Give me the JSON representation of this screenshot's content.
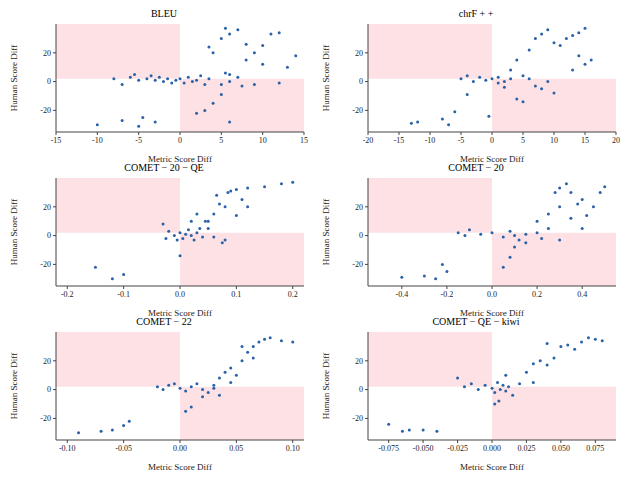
{
  "chart_data": [
    {
      "type": "scatter",
      "title": "BLEU",
      "x_label": "Metric Score Diff",
      "y_label": "Human Score Diff",
      "color": "#2a62a8",
      "grid": false,
      "marker": "circle",
      "xlim": [
        -15,
        15
      ],
      "xticks": [
        -15,
        -10,
        -5,
        0,
        5,
        10,
        15
      ],
      "ylim": [
        -35,
        40
      ],
      "yticks": [
        -20,
        0,
        20
      ],
      "shaded_regions": [
        {
          "x": [
            -15,
            0
          ],
          "y": [
            2,
            40
          ]
        },
        {
          "x": [
            0,
            15
          ],
          "y": [
            -35,
            2
          ]
        }
      ],
      "x": [
        -4,
        -3.5,
        -3,
        -2.5,
        -2,
        -1.5,
        -1,
        -0.5,
        0,
        0.5,
        1,
        1.5,
        2,
        2.5,
        3,
        3.5,
        -6,
        -5.5,
        -5,
        -7,
        -8,
        -10,
        -7,
        -5,
        -3,
        -4.5,
        5,
        5.5,
        6,
        7,
        3,
        4,
        6,
        5,
        2,
        4,
        5,
        6,
        7,
        8,
        9,
        10,
        11,
        12,
        13,
        14,
        10,
        9,
        6,
        8,
        12,
        5.5,
        3.5,
        7.5
      ],
      "values": [
        2,
        4,
        1,
        3,
        0,
        2,
        -1,
        1,
        2,
        -1,
        3,
        0,
        1,
        4,
        -2,
        2,
        3,
        5,
        1,
        -2,
        2,
        -30,
        -27,
        -31,
        -28,
        -25,
        -2,
        6,
        0,
        3,
        -20,
        -15,
        -28,
        -9,
        -22,
        20,
        30,
        33,
        36,
        15,
        20,
        25,
        33,
        34,
        10,
        18,
        12,
        -2,
        5,
        26,
        -1,
        37,
        24,
        -3
      ]
    },
    {
      "type": "scatter",
      "title": "chrF + +",
      "x_label": "Metric Score Diff",
      "y_label": "Human Score Diff",
      "color": "#2a62a8",
      "grid": false,
      "marker": "circle",
      "xlim": [
        -20,
        20
      ],
      "xticks": [
        -20,
        -15,
        -10,
        -5,
        0,
        5,
        10,
        15,
        20
      ],
      "ylim": [
        -35,
        40
      ],
      "yticks": [
        -20,
        0,
        20
      ],
      "shaded_regions": [
        {
          "x": [
            -20,
            0
          ],
          "y": [
            2,
            40
          ]
        },
        {
          "x": [
            0,
            20
          ],
          "y": [
            -35,
            2
          ]
        }
      ],
      "x": [
        -13,
        -12,
        -8,
        -7,
        -6,
        -4,
        -5,
        -4,
        -3,
        -2,
        -1,
        0,
        1,
        1,
        2,
        3,
        -0.5,
        2,
        4,
        5,
        5,
        6,
        7,
        8,
        9,
        4,
        6,
        7,
        8,
        9,
        10,
        11,
        12,
        13,
        14,
        15,
        15,
        14,
        13,
        16,
        10,
        3
      ],
      "values": [
        -29,
        -28,
        -26,
        -30,
        -21,
        -9,
        2,
        4,
        0,
        3,
        1,
        2,
        -1,
        3,
        0,
        2,
        -24,
        -4,
        -12,
        -14,
        4,
        2,
        -3,
        -5,
        0,
        15,
        22,
        30,
        33,
        36,
        27,
        25,
        30,
        32,
        34,
        37,
        12,
        18,
        8,
        15,
        -8,
        8
      ]
    },
    {
      "type": "scatter",
      "title": "COMET − 20 − QE",
      "x_label": "Metric Score Diff",
      "y_label": "Human Score Diff",
      "color": "#2a62a8",
      "grid": false,
      "marker": "circle",
      "xlim": [
        -0.22,
        0.22
      ],
      "xticks": [
        -0.2,
        -0.1,
        {
          "value": 0,
          "label": "0.0"
        },
        0.1,
        0.2
      ],
      "ylim": [
        -35,
        40
      ],
      "yticks": [
        -20,
        0,
        20
      ],
      "shaded_regions": [
        {
          "x": [
            -0.22,
            0
          ],
          "y": [
            2,
            40
          ]
        },
        {
          "x": [
            0,
            0.22
          ],
          "y": [
            -35,
            2
          ]
        }
      ],
      "x": [
        -0.15,
        -0.12,
        -0.1,
        -0.03,
        -0.02,
        -0.025,
        -0.01,
        0,
        0.005,
        0.01,
        0.015,
        0.02,
        0.025,
        0.03,
        0.035,
        0.04,
        0.045,
        0.02,
        0.03,
        0.05,
        0.06,
        0.07,
        0.08,
        0.085,
        0.09,
        0.1,
        0.11,
        0.12,
        0.15,
        0.2,
        0.18,
        0.12,
        0.08,
        0.06,
        0,
        -0.005,
        0.05,
        0.1,
        0.065,
        0.075
      ],
      "values": [
        -22,
        -30,
        -27,
        8,
        3,
        -2,
        0,
        2,
        -2,
        1,
        4,
        0,
        -3,
        2,
        5,
        -1,
        10,
        10,
        15,
        5,
        15,
        22,
        20,
        30,
        31,
        32,
        25,
        33,
        34,
        37,
        36,
        20,
        -3,
        -1,
        -14,
        -3,
        10,
        14,
        28,
        -5
      ]
    },
    {
      "type": "scatter",
      "title": "COMET − 20",
      "x_label": "Metric Score Diff",
      "y_label": "Human Score Diff",
      "color": "#2a62a8",
      "grid": false,
      "marker": "circle",
      "xlim": [
        -0.55,
        0.55
      ],
      "xticks": [
        -0.4,
        -0.2,
        {
          "value": 0,
          "label": "0.0"
        },
        0.2,
        0.4
      ],
      "ylim": [
        -35,
        40
      ],
      "yticks": [
        -20,
        0,
        20
      ],
      "shaded_regions": [
        {
          "x": [
            -0.55,
            0
          ],
          "y": [
            2,
            40
          ]
        },
        {
          "x": [
            0,
            0.55
          ],
          "y": [
            -35,
            2
          ]
        }
      ],
      "x": [
        -0.4,
        -0.3,
        -0.25,
        -0.2,
        -0.22,
        -0.15,
        -0.12,
        -0.1,
        -0.05,
        0,
        0.05,
        0.08,
        0.1,
        0.12,
        0.15,
        0.2,
        0.22,
        0.05,
        0.08,
        0.1,
        0.15,
        0.25,
        0.25,
        0.3,
        0.28,
        0.3,
        0.33,
        0.35,
        0.38,
        0.4,
        0.42,
        0.45,
        0.48,
        0.5,
        0.35,
        0.2,
        0.3,
        0.4
      ],
      "values": [
        -29,
        -28,
        -30,
        -25,
        -20,
        2,
        0,
        4,
        1,
        2,
        -1,
        3,
        0,
        -3,
        1,
        2,
        -2,
        -22,
        -15,
        -8,
        -5,
        5,
        15,
        20,
        30,
        33,
        36,
        30,
        22,
        25,
        14,
        20,
        30,
        34,
        12,
        10,
        -3,
        5
      ]
    },
    {
      "type": "scatter",
      "title": "COMET − 22",
      "x_label": "Metric Score Diff",
      "y_label": "Human Score Diff",
      "color": "#2a62a8",
      "grid": false,
      "marker": "circle",
      "xlim": [
        -0.11,
        0.11
      ],
      "xticks": [
        {
          "value": -0.1,
          "label": "-0.10"
        },
        {
          "value": -0.05,
          "label": "-0.05"
        },
        {
          "value": 0,
          "label": "0.00"
        },
        {
          "value": 0.05,
          "label": "0.05"
        },
        {
          "value": 0.1,
          "label": "0.10"
        }
      ],
      "ylim": [
        -35,
        40
      ],
      "yticks": [
        -20,
        0,
        20
      ],
      "shaded_regions": [
        {
          "x": [
            -0.11,
            0
          ],
          "y": [
            2,
            40
          ]
        },
        {
          "x": [
            0,
            0.11
          ],
          "y": [
            -35,
            2
          ]
        }
      ],
      "x": [
        -0.09,
        -0.07,
        -0.06,
        -0.05,
        -0.045,
        -0.02,
        -0.015,
        -0.01,
        -0.005,
        0,
        0.005,
        0.01,
        0.015,
        0.02,
        0.025,
        0.03,
        0.005,
        0.01,
        0.02,
        0.03,
        0.035,
        0.04,
        0.045,
        0.05,
        0.055,
        0.06,
        0.065,
        0.07,
        0.075,
        0.08,
        0.09,
        0.1,
        0.055,
        0.065,
        0.045,
        0.035
      ],
      "values": [
        -30,
        -29,
        -28,
        -25,
        -22,
        2,
        0,
        3,
        4,
        1,
        -1,
        2,
        4,
        0,
        -2,
        1,
        -15,
        -12,
        -5,
        3,
        8,
        12,
        15,
        10,
        20,
        26,
        30,
        33,
        35,
        36,
        34,
        33,
        30,
        22,
        5,
        -4
      ]
    },
    {
      "type": "scatter",
      "title": "COMET − QE − kiwi",
      "x_label": "Metric Score Diff",
      "y_label": "Human Score Diff",
      "color": "#2a62a8",
      "grid": false,
      "marker": "circle",
      "xlim": [
        -0.09,
        0.09
      ],
      "xticks": [
        -0.075,
        {
          "value": -0.05,
          "label": "-0.050"
        },
        -0.025,
        {
          "value": 0,
          "label": "0.000"
        },
        0.025,
        {
          "value": 0.05,
          "label": "0.050"
        },
        0.075
      ],
      "ylim": [
        -35,
        40
      ],
      "yticks": [
        -20,
        0,
        20
      ],
      "shaded_regions": [
        {
          "x": [
            -0.09,
            0
          ],
          "y": [
            2,
            40
          ]
        },
        {
          "x": [
            0,
            0.09
          ],
          "y": [
            -35,
            2
          ]
        }
      ],
      "x": [
        -0.075,
        -0.065,
        -0.06,
        -0.05,
        -0.04,
        -0.02,
        -0.015,
        -0.01,
        -0.005,
        0,
        0.002,
        0.004,
        0.006,
        0.008,
        0.01,
        0.012,
        0.015,
        0.02,
        -0.025,
        0.002,
        0.005,
        0.01,
        0.025,
        0.03,
        0.035,
        0.04,
        0.045,
        0.05,
        0.055,
        0.06,
        0.065,
        0.07,
        0.075,
        0.08,
        0.04,
        0.03
      ],
      "values": [
        -24,
        -29,
        -28,
        -28,
        -29,
        2,
        4,
        0,
        3,
        1,
        -2,
        5,
        0,
        3,
        -1,
        2,
        -4,
        4,
        8,
        -10,
        -8,
        10,
        12,
        18,
        20,
        17,
        22,
        30,
        31,
        28,
        33,
        36,
        35,
        34,
        32,
        5
      ]
    }
  ]
}
